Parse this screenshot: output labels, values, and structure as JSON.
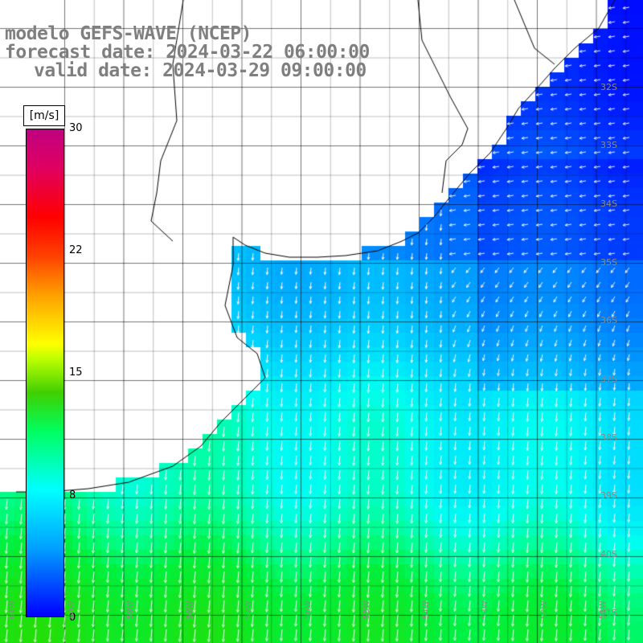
{
  "title": {
    "line1": "modelo GEFS-WAVE (NCEP)",
    "line2": "forecast date: 2024-03-22 06:00:00",
    "line3": "valid date: 2024-03-29 09:00:00"
  },
  "colorbar": {
    "unit": "[m/s]",
    "ticks": [
      "30",
      "22",
      "15",
      "8",
      "0"
    ],
    "colors": [
      "#0000ff",
      "#00ffff",
      "#00ff60",
      "#ffff00",
      "#ff0000",
      "#c00080"
    ]
  },
  "lat_labels": [
    "32S",
    "33S",
    "34S",
    "35S",
    "36S",
    "37S",
    "38S",
    "39S",
    "40S",
    "41S"
  ],
  "lon_labels": [
    "61W",
    "60W",
    "59W",
    "58W",
    "57W",
    "56W",
    "55W",
    "54W",
    "53W",
    "52W",
    "51W"
  ],
  "colors": {
    "land": "#ffffff",
    "grid": "#000000",
    "arrow": "#ffffff",
    "title": "#7f7f7f"
  },
  "field": {
    "description_values_m_s": [
      3,
      5,
      7,
      9,
      10
    ]
  }
}
